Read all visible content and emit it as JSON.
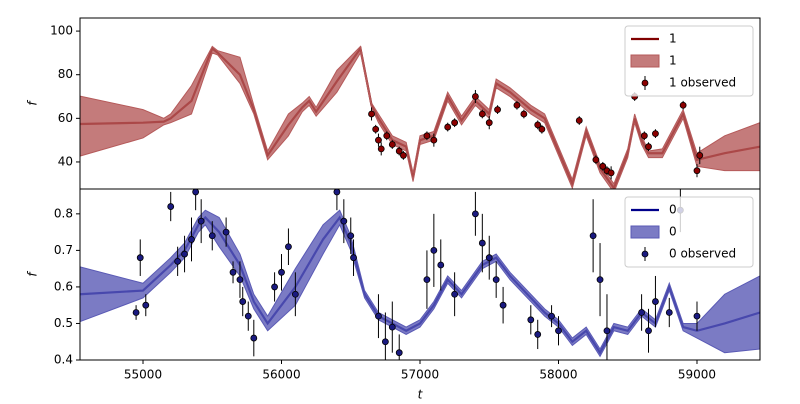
{
  "chart_data": [
    {
      "type": "line",
      "ylabel": "f",
      "xlim": [
        54545,
        59455
      ],
      "ylim": [
        27.6,
        106
      ],
      "yticks": [
        40,
        60,
        80,
        100
      ],
      "legend": "upper right",
      "series": [
        {
          "name": "1",
          "type": "line",
          "color": "#800000",
          "x": [
            54545,
            55000,
            55150,
            55200,
            55350,
            55500,
            55540,
            55700,
            55800,
            55900,
            56050,
            56150,
            56200,
            56250,
            56400,
            56570,
            56650,
            56700,
            56800,
            56900,
            56950,
            57000,
            57100,
            57200,
            57300,
            57400,
            57500,
            57550,
            57650,
            57800,
            57900,
            58000,
            58100,
            58200,
            58300,
            58400,
            58500,
            58550,
            58600,
            58650,
            58750,
            58900,
            59000,
            59200,
            59455
          ],
          "values": [
            57.4,
            58,
            58.5,
            60,
            68,
            92,
            90,
            80,
            64,
            43,
            57,
            65,
            68,
            63,
            77,
            92,
            66,
            60,
            50,
            47,
            33,
            50,
            52,
            70,
            59,
            68,
            62,
            76,
            72,
            64,
            60,
            45,
            30,
            54,
            37,
            28,
            44,
            60,
            50,
            44,
            44,
            62,
            41,
            44,
            47
          ]
        },
        {
          "name": "1",
          "type": "band",
          "color": "#b55a5a",
          "x": [
            54545,
            55000,
            55150,
            55200,
            55350,
            55500,
            55540,
            55700,
            55800,
            55900,
            56050,
            56150,
            56200,
            56250,
            56400,
            56570,
            56650,
            56700,
            56800,
            56900,
            56950,
            57000,
            57100,
            57200,
            57300,
            57400,
            57500,
            57550,
            57650,
            57800,
            57900,
            58000,
            58100,
            58200,
            58300,
            58400,
            58500,
            58550,
            58600,
            58650,
            58750,
            58900,
            59000,
            59200,
            59455
          ],
          "lower": [
            42.7,
            51,
            57,
            58,
            62,
            90,
            89,
            76,
            62,
            41,
            52,
            63,
            66,
            61,
            72,
            90,
            65,
            58,
            48,
            45,
            31,
            48,
            50,
            68,
            57,
            66,
            60,
            74,
            70,
            62,
            58,
            43,
            28,
            52,
            35,
            26,
            42,
            58,
            48,
            42,
            42,
            60,
            38,
            36,
            36
          ],
          "upper": [
            70.2,
            64,
            60,
            62,
            75,
            93,
            91,
            88,
            66,
            45,
            62,
            67,
            70,
            65,
            82,
            93,
            67,
            62,
            52,
            49,
            35,
            52,
            54,
            72,
            61,
            70,
            64,
            78,
            74,
            66,
            62,
            47,
            32,
            56,
            39,
            30,
            46,
            62,
            52,
            45,
            46,
            64,
            44,
            52,
            58
          ]
        },
        {
          "name": "1 observed",
          "type": "errorbar",
          "color": "#8b0000",
          "x": [
            56650,
            56680,
            56700,
            56720,
            56760,
            56800,
            56850,
            56880,
            57050,
            57100,
            57200,
            57250,
            57400,
            57450,
            57500,
            57560,
            57700,
            57750,
            57850,
            57880,
            58150,
            58270,
            58320,
            58350,
            58380,
            58550,
            58620,
            58650,
            58700,
            58900,
            59000,
            59020
          ],
          "values": [
            62,
            55,
            50,
            46,
            52,
            48,
            45,
            43,
            52,
            50,
            56,
            58,
            70,
            62,
            58,
            64,
            66,
            62,
            57,
            55,
            59,
            41,
            38,
            36,
            35,
            70,
            52,
            47,
            53,
            66,
            36,
            43
          ],
          "errors": [
            3,
            2,
            3,
            3,
            2,
            2,
            2,
            2,
            2,
            3,
            2,
            2,
            3,
            2,
            3,
            2,
            2,
            2,
            2,
            2,
            2,
            2,
            2,
            2,
            3,
            2,
            2,
            2,
            2,
            2,
            3,
            4
          ]
        }
      ]
    },
    {
      "type": "line",
      "ylabel": "f",
      "xlabel": "t",
      "xlim": [
        54545,
        59455
      ],
      "xticks": [
        55000,
        56000,
        57000,
        58000,
        59000
      ],
      "ylim": [
        0.4,
        0.868
      ],
      "yticks": [
        0.4,
        0.5,
        0.6,
        0.7,
        0.8
      ],
      "legend": "upper right",
      "series": [
        {
          "name": "0",
          "type": "line",
          "color": "#00008b",
          "x": [
            54545,
            55000,
            55200,
            55300,
            55400,
            55450,
            55550,
            55700,
            55800,
            55900,
            56100,
            56300,
            56420,
            56500,
            56600,
            56700,
            56800,
            56900,
            57000,
            57100,
            57200,
            57300,
            57450,
            57550,
            57650,
            57800,
            57900,
            58000,
            58100,
            58200,
            58300,
            58400,
            58500,
            58600,
            58700,
            58800,
            58900,
            59000,
            59200,
            59455
          ],
          "values": [
            0.58,
            0.59,
            0.66,
            0.7,
            0.77,
            0.79,
            0.75,
            0.66,
            0.56,
            0.5,
            0.6,
            0.73,
            0.79,
            0.72,
            0.58,
            0.52,
            0.5,
            0.48,
            0.5,
            0.55,
            0.62,
            0.58,
            0.66,
            0.68,
            0.63,
            0.57,
            0.53,
            0.5,
            0.45,
            0.48,
            0.42,
            0.49,
            0.48,
            0.53,
            0.5,
            0.6,
            0.49,
            0.48,
            0.5,
            0.53
          ]
        },
        {
          "name": "0",
          "type": "band",
          "color": "#5a5ab5",
          "x": [
            54545,
            55000,
            55200,
            55300,
            55400,
            55450,
            55550,
            55700,
            55800,
            55900,
            56100,
            56300,
            56420,
            56500,
            56600,
            56700,
            56800,
            56900,
            57000,
            57100,
            57200,
            57300,
            57450,
            57550,
            57650,
            57800,
            57900,
            58000,
            58100,
            58200,
            58300,
            58400,
            58500,
            58600,
            58700,
            58800,
            58900,
            59000,
            59200,
            59455
          ],
          "lower": [
            0.505,
            0.57,
            0.64,
            0.68,
            0.75,
            0.77,
            0.71,
            0.63,
            0.54,
            0.48,
            0.55,
            0.69,
            0.77,
            0.7,
            0.57,
            0.51,
            0.49,
            0.47,
            0.49,
            0.54,
            0.61,
            0.57,
            0.65,
            0.67,
            0.62,
            0.56,
            0.52,
            0.49,
            0.44,
            0.47,
            0.41,
            0.48,
            0.47,
            0.52,
            0.49,
            0.59,
            0.48,
            0.46,
            0.42,
            0.43
          ],
          "upper": [
            0.655,
            0.61,
            0.68,
            0.72,
            0.79,
            0.81,
            0.79,
            0.69,
            0.58,
            0.52,
            0.65,
            0.77,
            0.81,
            0.74,
            0.59,
            0.53,
            0.51,
            0.49,
            0.51,
            0.56,
            0.63,
            0.59,
            0.67,
            0.69,
            0.64,
            0.58,
            0.54,
            0.51,
            0.46,
            0.49,
            0.43,
            0.5,
            0.49,
            0.54,
            0.51,
            0.61,
            0.5,
            0.5,
            0.58,
            0.63
          ]
        },
        {
          "name": "0 observed",
          "type": "errorbar",
          "color": "#1a1a80",
          "x": [
            54950,
            54980,
            55020,
            55200,
            55250,
            55300,
            55350,
            55380,
            55420,
            55500,
            55600,
            55650,
            55700,
            55720,
            55760,
            55800,
            55950,
            56000,
            56050,
            56100,
            56400,
            56450,
            56500,
            56520,
            56700,
            56750,
            56800,
            56850,
            57050,
            57100,
            57150,
            57250,
            57400,
            57450,
            57500,
            57550,
            57600,
            57800,
            57850,
            57950,
            58000,
            58250,
            58300,
            58350,
            58600,
            58650,
            58700,
            58800,
            58880,
            59000
          ],
          "values": [
            0.53,
            0.68,
            0.55,
            0.82,
            0.67,
            0.69,
            0.73,
            0.86,
            0.78,
            0.74,
            0.75,
            0.64,
            0.62,
            0.56,
            0.52,
            0.46,
            0.6,
            0.64,
            0.71,
            0.58,
            0.86,
            0.78,
            0.74,
            0.68,
            0.52,
            0.45,
            0.49,
            0.42,
            0.62,
            0.7,
            0.66,
            0.58,
            0.8,
            0.72,
            0.68,
            0.62,
            0.55,
            0.51,
            0.47,
            0.52,
            0.48,
            0.74,
            0.62,
            0.48,
            0.53,
            0.48,
            0.56,
            0.53,
            0.81,
            0.52
          ],
          "errors": [
            0.02,
            0.05,
            0.03,
            0.04,
            0.04,
            0.05,
            0.06,
            0.05,
            0.06,
            0.04,
            0.04,
            0.03,
            0.05,
            0.04,
            0.04,
            0.05,
            0.04,
            0.05,
            0.05,
            0.06,
            0.05,
            0.06,
            0.05,
            0.05,
            0.06,
            0.08,
            0.07,
            0.05,
            0.08,
            0.1,
            0.07,
            0.06,
            0.06,
            0.08,
            0.06,
            0.05,
            0.05,
            0.04,
            0.04,
            0.03,
            0.04,
            0.1,
            0.1,
            0.1,
            0.05,
            0.06,
            0.07,
            0.04,
            0.06,
            0.04
          ]
        }
      ]
    }
  ]
}
